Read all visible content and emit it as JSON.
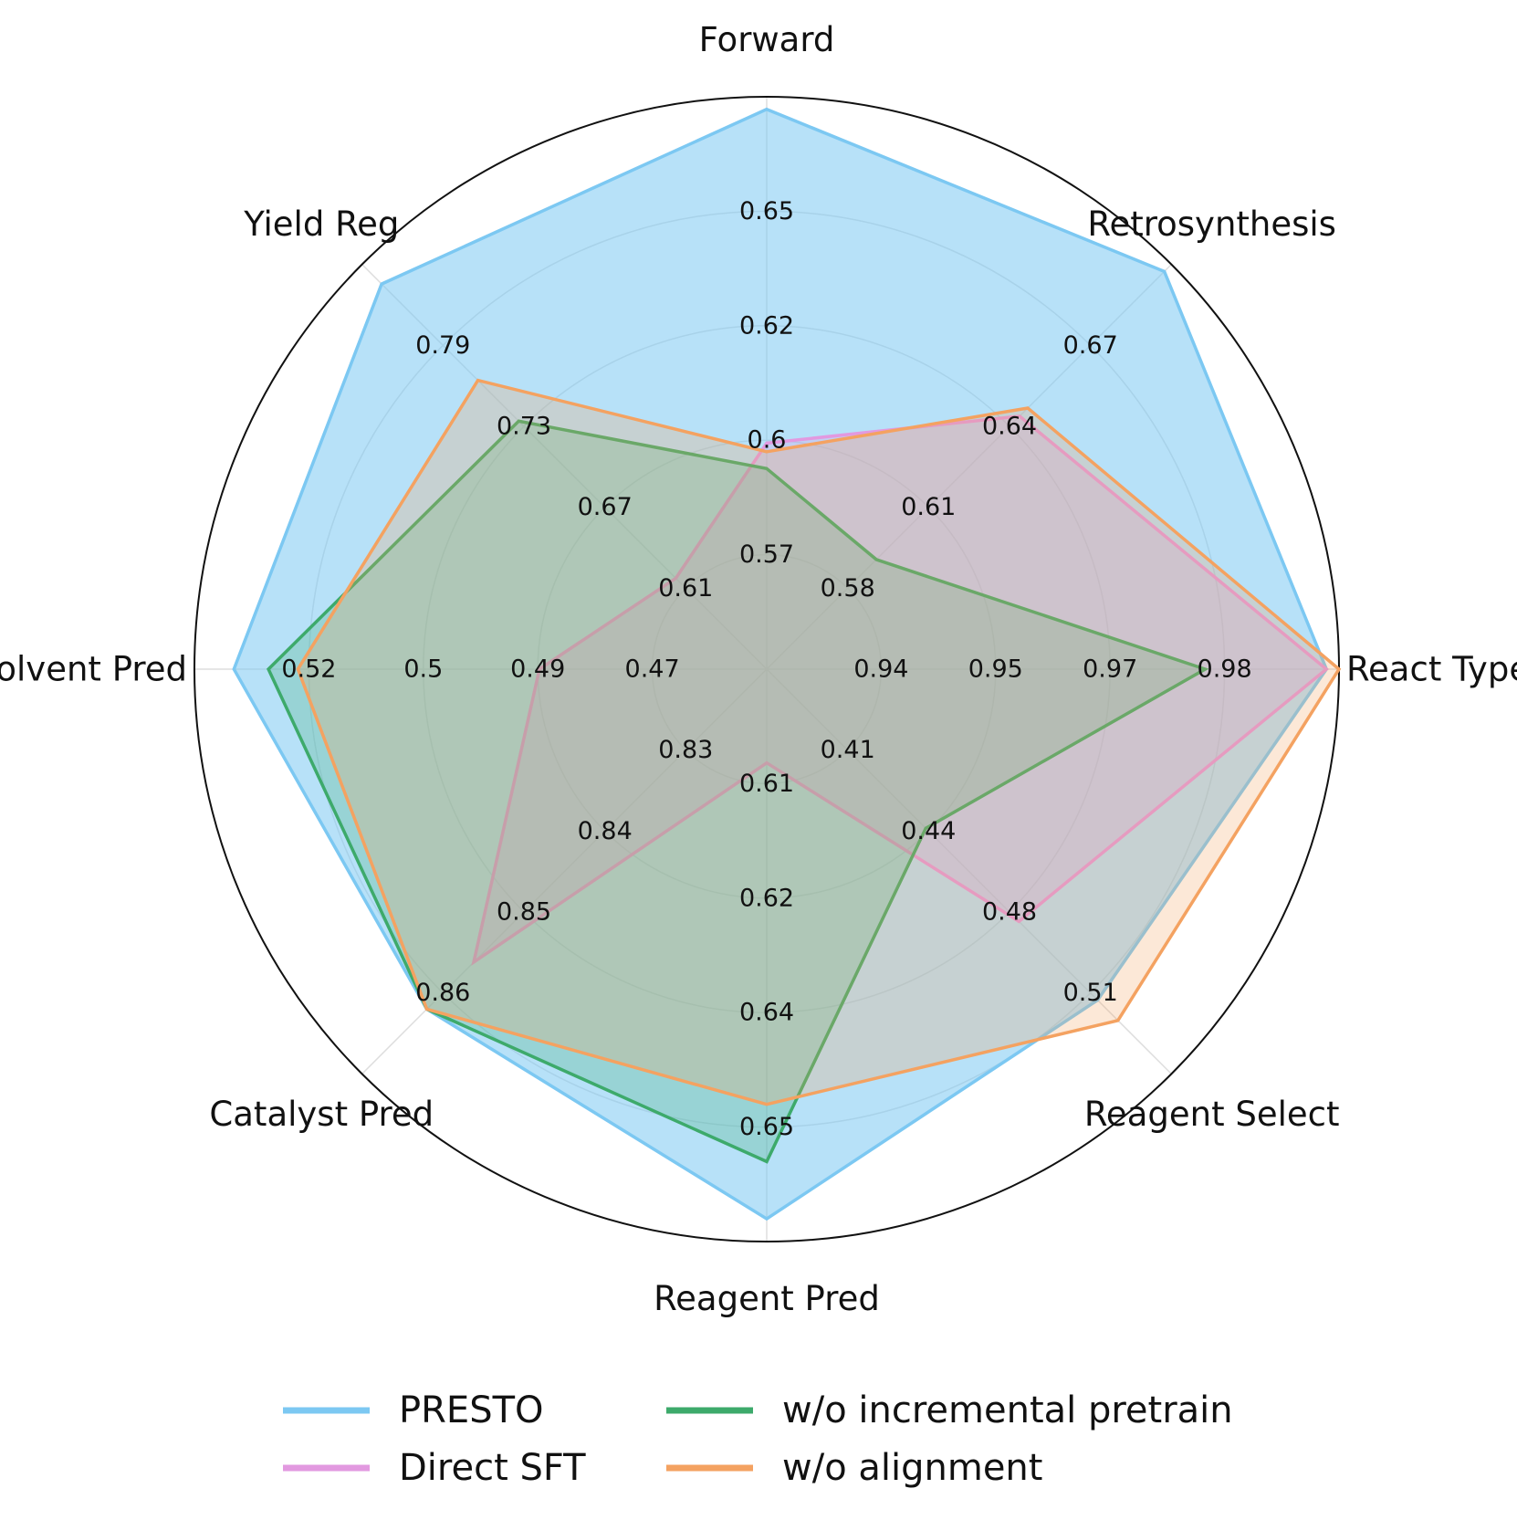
{
  "chart_data": {
    "type": "radar",
    "axes": [
      {
        "label": "Forward",
        "ticks": [
          "0.57",
          "0.6",
          "0.62",
          "0.65"
        ],
        "range": [
          0.553,
          0.672
        ]
      },
      {
        "label": "Retrosynthesis",
        "ticks": [
          "0.58",
          "0.61",
          "0.64",
          "0.67"
        ],
        "range": [
          0.565,
          0.685
        ]
      },
      {
        "label": "React Type",
        "ticks": [
          "0.94",
          "0.95",
          "0.97",
          "0.98"
        ],
        "range": [
          0.932,
          0.982
        ]
      },
      {
        "label": "Reagent Select",
        "ticks": [
          "0.41",
          "0.44",
          "0.48",
          "0.51"
        ],
        "range": [
          0.393,
          0.54
        ]
      },
      {
        "label": "Reagent Pred",
        "ticks": [
          "0.61",
          "0.62",
          "0.64",
          "0.65"
        ],
        "range": [
          0.604,
          0.662
        ]
      },
      {
        "label": "Catalyst Pred",
        "ticks": [
          "0.83",
          "0.84",
          "0.85",
          "0.86"
        ],
        "range": [
          0.824,
          0.874
        ]
      },
      {
        "label": "Solvent Pred",
        "ticks": [
          "0.47",
          "0.49",
          "0.5",
          "0.52"
        ],
        "range": [
          0.462,
          0.53
        ]
      },
      {
        "label": "Yield Reg",
        "ticks": [
          "0.61",
          "0.67",
          "0.73",
          "0.79"
        ],
        "range": [
          0.58,
          0.82
        ]
      }
    ],
    "series": [
      {
        "name": "PRESTO",
        "color": "#7cc8f2",
        "fill_opacity": 0.55,
        "values": [
          0.6694,
          0.6829,
          0.9809,
          0.5132,
          0.6597,
          0.866,
          0.5253,
          0.8084
        ]
      },
      {
        "name": "Direct SFT",
        "color": "#e299e0",
        "fill_opacity": 0.25,
        "values": [
          0.6,
          0.64,
          0.9809,
          0.4846,
          0.6135,
          0.8602,
          0.489,
          0.6339
        ]
      },
      {
        "name": "w/o incremental pretrain",
        "color": "#3daa6b",
        "fill_opacity": 0.25,
        "values": [
          0.5947,
          0.5975,
          0.9703,
          0.4508,
          0.6539,
          0.866,
          0.5212,
          0.7271
        ]
      },
      {
        "name": "w/o alignment",
        "color": "#f4a261",
        "fill_opacity": 0.25,
        "values": [
          0.5982,
          0.6424,
          0.9826,
          0.5206,
          0.6481,
          0.866,
          0.5177,
          0.7513
        ]
      }
    ],
    "legend_position": "bottom",
    "grid": true
  }
}
